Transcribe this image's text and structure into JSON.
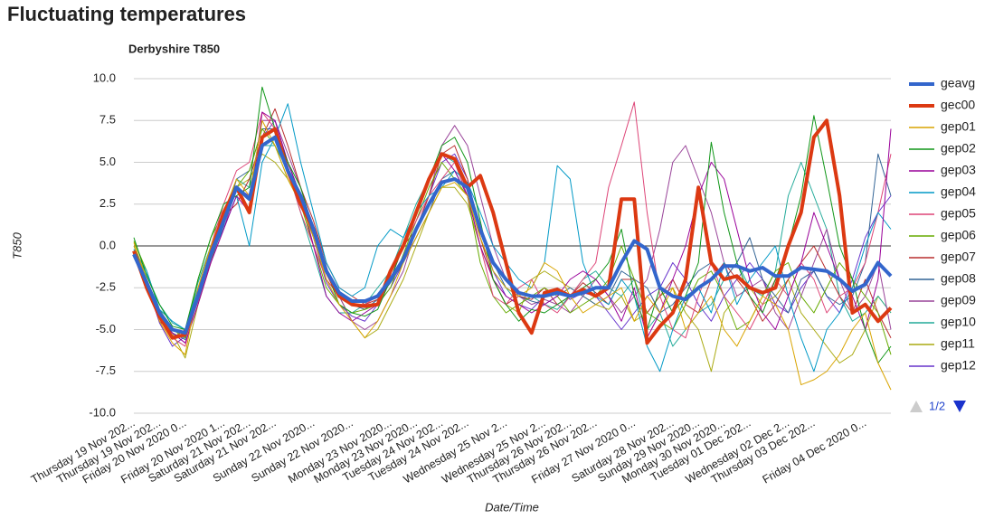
{
  "header": {
    "title": "Fluctuating temperatures"
  },
  "chart_data": {
    "type": "line",
    "title": "Derbyshire T850",
    "y_label": "T850",
    "x_label": "Date/Time",
    "grid": true,
    "legend": "right",
    "legend_page": "1/2",
    "ylim": [
      -10,
      10
    ],
    "yticks": [
      {
        "value": -10,
        "label": "-10.0"
      },
      -7.5,
      {
        "value": -5,
        "label": "-5.0"
      },
      -2.5,
      {
        "value": 0,
        "label": "0.0"
      },
      2.5,
      {
        "value": 5,
        "label": "5.0"
      },
      7.5,
      {
        "value": 10,
        "label": "10.0"
      }
    ],
    "categories": [
      "Thursday 19 Nov 202...",
      null,
      "Thursday 19 Nov 202...",
      null,
      "Friday 20 Nov 2020 0...",
      null,
      null,
      "Friday 20 Nov 2020 1...",
      null,
      "Saturday 21 Nov 202...",
      null,
      "Saturday 21 Nov 202...",
      null,
      null,
      "Sunday 22 Nov 2020...",
      null,
      null,
      "Sunday 22 Nov 2020...",
      null,
      null,
      "Monday 23 Nov 2020...",
      null,
      "Monday 23 Nov 2020...",
      null,
      "Tuesday 24 Nov 202...",
      null,
      "Tuesday 24 Nov 202...",
      null,
      null,
      "Wednesday 25 Nov 2...",
      null,
      null,
      "Wednesday 25 Nov 2...",
      null,
      "Thursday 26 Nov 202...",
      null,
      "Thursday 26 Nov 202...",
      null,
      null,
      "Friday 27 Nov 2020 0...",
      null,
      null,
      "Saturday 28 Nov 202...",
      null,
      "Sunday 29 Nov 2020...",
      null,
      "Monday 30 Nov 2020...",
      null,
      "Tuesday 01 Dec 202...",
      null,
      null,
      "Wednesday 02 Dec 2...",
      null,
      "Thursday 03 Dec 202...",
      null,
      null,
      null,
      "Friday 04 Dec 2020 0...",
      null,
      null
    ],
    "series": [
      {
        "name": "geavg",
        "color": "#3366cc",
        "values": [
          -0.5,
          -2.2,
          -4,
          -5,
          -5.2,
          -3,
          -0.5,
          1.5,
          3.5,
          2.8,
          6,
          6.5,
          4.5,
          3,
          1,
          -1.5,
          -2.8,
          -3.3,
          -3.3,
          -3,
          -2,
          -0.8,
          1,
          2.5,
          3.8,
          4,
          3.5,
          1,
          -1,
          -2,
          -2.8,
          -3,
          -3,
          -2.8,
          -3,
          -2.8,
          -2.5,
          -2.5,
          -1,
          0.3,
          -0.2,
          -2.5,
          -3,
          -3.2,
          -2.5,
          -2,
          -1.2,
          -1.2,
          -1.5,
          -1.3,
          -1.8,
          -1.8,
          -1.3,
          -1.4,
          -1.5,
          -2,
          -2.7,
          -2.3,
          -1,
          -1.8
        ]
      },
      {
        "name": "gec00",
        "color": "#dc3912",
        "values": [
          -0.3,
          -2.5,
          -4.2,
          -5.5,
          -5.3,
          -3,
          -0.5,
          2,
          3.5,
          2,
          6.5,
          7,
          4.5,
          2.5,
          1,
          -1.5,
          -3,
          -3.5,
          -3.6,
          -3.5,
          -1.5,
          0,
          2,
          4,
          5.5,
          5.2,
          3.5,
          4.2,
          2,
          -1,
          -4,
          -5.2,
          -2.8,
          -2.6,
          -3,
          -2.6,
          -3,
          -2.5,
          2.8,
          2.8,
          -5.8,
          -4.8,
          -4,
          -2,
          3.5,
          -1,
          -2,
          -1.8,
          -2.5,
          -2.8,
          -2.5,
          0,
          2,
          6.5,
          7.5,
          3,
          -4,
          -3.5,
          -4.5,
          -3.7
        ]
      },
      {
        "name": "gep01",
        "color": "#d9a400",
        "values": [
          0.2,
          -2,
          -4.5,
          -5.8,
          -6.5,
          -2.5,
          0,
          2,
          4,
          3,
          7.5,
          6,
          4,
          2.5,
          0.5,
          -2,
          -3.5,
          -4.5,
          -5.5,
          -4.5,
          -3,
          -1,
          0.5,
          2,
          3.5,
          3.8,
          3,
          0.5,
          -1.5,
          -2.5,
          -3,
          -2.5,
          -1,
          -1.5,
          -3,
          -4,
          -3.5,
          -3,
          -2.5,
          -4.5,
          -3,
          -4,
          -2.5,
          -5,
          -4,
          -3,
          -5,
          -6,
          -4.5,
          -3,
          -3.5,
          -5,
          -8.3,
          -8,
          -7.5,
          -6.5,
          -5,
          -4,
          -7,
          -8.6
        ]
      },
      {
        "name": "gep02",
        "color": "#109618",
        "values": [
          0.5,
          -1.8,
          -3.5,
          -4.8,
          -5,
          -2,
          0.5,
          2.5,
          3,
          3.5,
          9.5,
          7,
          5,
          3.5,
          1,
          -1.5,
          -3.5,
          -4,
          -4.2,
          -3.8,
          -2,
          0,
          2,
          4,
          6,
          6.5,
          5,
          1.5,
          -2,
          -3.5,
          -4.5,
          -3.8,
          -4,
          -3.5,
          -3,
          -2.5,
          -2,
          -1,
          1,
          -3,
          -5,
          -2.5,
          -4,
          -3,
          -1,
          6.2,
          2,
          -1,
          -3,
          -4,
          -2,
          0,
          3,
          7.8,
          4,
          0,
          -2,
          -5,
          -7,
          -6
        ]
      },
      {
        "name": "gep03",
        "color": "#990099",
        "values": [
          -0.5,
          -2.5,
          -4.5,
          -5.2,
          -5.8,
          -3.5,
          -1,
          1,
          3,
          2,
          8,
          7.5,
          5,
          3,
          0,
          -3,
          -4,
          -4.5,
          -4,
          -3.5,
          -2,
          0,
          2,
          4,
          5.5,
          4.5,
          3,
          0,
          -2,
          -3,
          -3.5,
          -4,
          -3.5,
          -3,
          -2,
          -1.5,
          -2,
          -3,
          -4.5,
          -2.5,
          -5.5,
          -4,
          -2,
          0,
          3,
          5,
          4,
          1,
          -2,
          -4,
          -5,
          -3,
          -1,
          2,
          0,
          -2,
          -3,
          -5,
          -2,
          7
        ]
      },
      {
        "name": "gep04",
        "color": "#0099c6",
        "values": [
          -0.2,
          -1.5,
          -3.8,
          -4.5,
          -5,
          -2.5,
          -0.5,
          1,
          3,
          0,
          5,
          6.5,
          8.5,
          5,
          2,
          -1,
          -2.5,
          -3,
          -2.5,
          0,
          1,
          0.5,
          2,
          3,
          3.5,
          4.5,
          3.8,
          2,
          0,
          -1,
          -2,
          -2.5,
          -1,
          4.8,
          4,
          -1,
          -3,
          -3.5,
          -2,
          -3,
          -6,
          -7.5,
          -5,
          -3,
          -2.5,
          -4,
          -1,
          -3.5,
          -2,
          -1,
          0,
          -3,
          -5.5,
          -7.5,
          -5,
          -4,
          -2.5,
          0,
          2,
          1
        ]
      },
      {
        "name": "gep05",
        "color": "#dd4477",
        "values": [
          -0.3,
          -2,
          -4,
          -5.5,
          -6,
          -3,
          0,
          2.5,
          4.5,
          5,
          8,
          7,
          4.5,
          2,
          0,
          -2,
          -3,
          -3.5,
          -3.5,
          -3,
          -2,
          0,
          1.5,
          3,
          4,
          5,
          3,
          0,
          -3,
          -3.5,
          -2.5,
          -2,
          -3.5,
          -4,
          -3,
          -2,
          -1,
          3.5,
          6,
          8.6,
          2,
          -3,
          -5,
          -5.5,
          -3,
          -1,
          -3,
          -4,
          -5,
          -3.5,
          -2,
          -3,
          -1,
          -2,
          -4,
          -3,
          -2.5,
          -1,
          2,
          5.5
        ]
      },
      {
        "name": "gep06",
        "color": "#66aa00",
        "values": [
          0.3,
          -1.5,
          -3.8,
          -5,
          -5.5,
          -2,
          0.5,
          2,
          3.5,
          4.5,
          7,
          6,
          4,
          2.5,
          0,
          -2.5,
          -3.5,
          -4,
          -3.8,
          -3.5,
          -2.5,
          -0.5,
          1.5,
          3.5,
          5,
          4,
          3,
          -1,
          -3,
          -4,
          -3.5,
          -3,
          -2.5,
          -3,
          -4,
          -3.5,
          -3,
          -2,
          0,
          -2,
          -4,
          -4.5,
          -5,
          -3.5,
          -2,
          -1.5,
          -3,
          -5,
          -4.5,
          -3,
          -1.5,
          -1,
          -3,
          -4,
          -2.5,
          -1,
          -2,
          -3,
          -4,
          -6.5
        ]
      },
      {
        "name": "gep07",
        "color": "#b82e2e",
        "values": [
          -0.4,
          -2.3,
          -4.2,
          -5.5,
          -5,
          -2.8,
          -0.2,
          1.8,
          2.5,
          4,
          6.5,
          8.2,
          6,
          3.5,
          1.5,
          -1,
          -2.5,
          -3,
          -3.5,
          -3.2,
          -1.5,
          0,
          1,
          3,
          5.5,
          6,
          4,
          0.5,
          -2,
          -3.5,
          -3,
          -3.2,
          -2.5,
          -3.5,
          -3,
          -2.2,
          -2.8,
          -3.5,
          -2,
          -2,
          -4,
          -3,
          -2,
          -3.5,
          -4,
          -2,
          -1,
          -2,
          -3,
          -4.5,
          -3.5,
          -2,
          -1,
          0,
          -1.5,
          -3,
          -4,
          -2,
          -4,
          -5.5
        ]
      },
      {
        "name": "gep08",
        "color": "#316395",
        "values": [
          -0.6,
          -2.5,
          -4.3,
          -5.2,
          -5.6,
          -3.2,
          -0.8,
          1.2,
          4,
          4.5,
          7,
          7,
          5,
          3,
          0.5,
          -2,
          -3,
          -3.5,
          -3.8,
          -3.2,
          -2.2,
          -1,
          0.5,
          2,
          4,
          4.5,
          3,
          1,
          -1,
          -2.5,
          -3,
          -3.3,
          -3.5,
          -3,
          -2.5,
          -3,
          -3.5,
          -3,
          -1.5,
          -2,
          -2.5,
          -4,
          -3.5,
          -2.5,
          -1.5,
          -1,
          -2,
          -1,
          0.5,
          -2,
          -3,
          -4,
          -2,
          -1.5,
          -3,
          -3.5,
          -3,
          -1,
          5.5,
          3
        ]
      },
      {
        "name": "gep09",
        "color": "#994499",
        "values": [
          -0.5,
          -2,
          -3.8,
          -5,
          -5.3,
          -3,
          -1,
          1,
          3.5,
          3,
          7.5,
          7.5,
          5.5,
          3.5,
          1,
          -1.5,
          -3,
          -4.5,
          -5,
          -4.5,
          -3,
          -1.5,
          1,
          3,
          6,
          7.2,
          6,
          3,
          0,
          -2,
          -3,
          -3.5,
          -3.2,
          -3.5,
          -4,
          -3,
          -2,
          -3,
          -4,
          -3,
          -2,
          1,
          5,
          6,
          4,
          2,
          -1,
          -3,
          -2.5,
          -2,
          -4,
          -5,
          -3,
          -1,
          1,
          -2,
          -4,
          -3,
          -1,
          -5
        ]
      },
      {
        "name": "gep10",
        "color": "#22aa99",
        "values": [
          -0.2,
          -1.7,
          -3.5,
          -4.6,
          -5,
          -2.2,
          0,
          1.5,
          4,
          3.5,
          6,
          6,
          4.5,
          2,
          -0.5,
          -3,
          -4,
          -4,
          -3.5,
          -2.5,
          -1.5,
          0.5,
          2.5,
          4,
          5.5,
          5,
          3,
          0.5,
          -1.5,
          -2.5,
          -3.5,
          -3,
          -3.5,
          -3.8,
          -3,
          -2,
          -1.5,
          -2.5,
          -3,
          -2,
          -5,
          -4,
          -6,
          -5,
          -4,
          -3.5,
          -2,
          -1,
          -2.5,
          -3,
          -1.5,
          3,
          5,
          3,
          1,
          -3,
          -4.5,
          -4,
          -3,
          -4
        ]
      },
      {
        "name": "gep11",
        "color": "#aaaa11",
        "values": [
          0,
          -2,
          -4,
          -5.2,
          -6.7,
          -3.5,
          -1,
          1.5,
          3.5,
          4,
          5.5,
          5,
          4,
          2.5,
          1,
          -1.5,
          -3,
          -4.5,
          -5.5,
          -5,
          -3.5,
          -2,
          0,
          2,
          3.5,
          3.5,
          2.5,
          0,
          -2,
          -3.5,
          -4,
          -2,
          -1.5,
          -2,
          -2.5,
          -3,
          -3.5,
          -3.8,
          -3,
          -4.5,
          -4,
          -3,
          -2.5,
          -4,
          -5,
          -7.5,
          -4,
          -3,
          -2.5,
          -3.5,
          -3,
          -2,
          -4,
          -5,
          -6,
          -7,
          -6.5,
          -5,
          -3,
          -4
        ]
      },
      {
        "name": "gep12",
        "color": "#6633cc",
        "values": [
          -0.4,
          -2.2,
          -4.6,
          -6,
          -5.4,
          -3.3,
          -0.8,
          1.5,
          3.5,
          3,
          6.5,
          7.5,
          5,
          3,
          0.5,
          -2.2,
          -3.5,
          -4.2,
          -4.5,
          -3.5,
          -2.5,
          -1,
          1,
          3,
          5,
          5.5,
          4,
          1,
          -1.5,
          -3,
          -3.5,
          -3.8,
          -3,
          -2.5,
          -3.2,
          -2.8,
          -3,
          -4,
          -5,
          -4,
          -3,
          -2.5,
          -1,
          -2,
          -3.5,
          -4.5,
          -3,
          -2,
          -1,
          -2,
          -3.5,
          -4,
          -2.5,
          -1.5,
          -3,
          -4,
          -2,
          0.5,
          2,
          3
        ]
      }
    ]
  }
}
